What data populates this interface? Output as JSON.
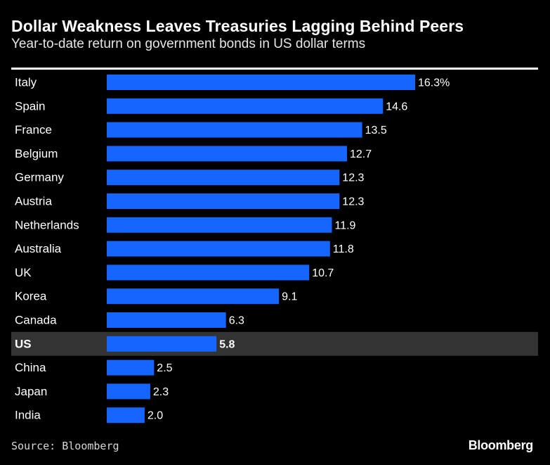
{
  "chart_data": {
    "type": "bar",
    "orientation": "horizontal",
    "title": "Dollar Weakness Leaves Treasuries Lagging Behind Peers",
    "subtitle": "Year-to-date return on government bonds in US dollar terms",
    "categories": [
      "Italy",
      "Spain",
      "France",
      "Belgium",
      "Germany",
      "Austria",
      "Netherlands",
      "Australia",
      "UK",
      "Korea",
      "Canada",
      "US",
      "China",
      "Japan",
      "India"
    ],
    "values": [
      16.3,
      14.6,
      13.5,
      12.7,
      12.3,
      12.3,
      11.9,
      11.8,
      10.7,
      9.1,
      6.3,
      5.8,
      2.5,
      2.3,
      2.0
    ],
    "value_labels": [
      "16.3%",
      "14.6",
      "13.5",
      "12.7",
      "12.3",
      "12.3",
      "11.9",
      "11.8",
      "10.7",
      "9.1",
      "6.3",
      "5.8",
      "2.5",
      "2.3",
      "2.0"
    ],
    "highlight": "US",
    "xlim": [
      0,
      16.3
    ],
    "xlabel": "",
    "ylabel": "",
    "unit": "%"
  },
  "source": "Source: Bloomberg",
  "brand": "Bloomberg",
  "colors": {
    "background": "#000000",
    "bar": "#1565ff",
    "highlight_row": "#333333",
    "text": "#ffffff"
  }
}
